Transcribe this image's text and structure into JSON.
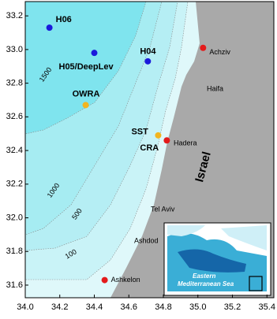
{
  "chart_data": {
    "type": "map",
    "xlim": [
      34.0,
      35.44
    ],
    "ylim": [
      31.525,
      33.285
    ],
    "xticks": [
      {
        "value": 34.0,
        "label": "34.0"
      },
      34.2,
      34.4,
      34.6,
      34.8,
      {
        "value": 35.0,
        "label": "35.0"
      },
      35.2,
      35.4
    ],
    "yticks": [
      31.6,
      31.8,
      {
        "value": 32.0,
        "label": "32.0"
      },
      32.2,
      32.4,
      32.6,
      32.8,
      {
        "value": 33.0,
        "label": "33.0"
      },
      33.2
    ],
    "stations": [
      {
        "name": "H06",
        "lon": 34.14,
        "lat": 33.13,
        "color": "#1a1adb"
      },
      {
        "name": "H05/DeepLev",
        "lon": 34.4,
        "lat": 32.98,
        "color": "#1a1adb"
      },
      {
        "name": "H04",
        "lon": 34.71,
        "lat": 32.93,
        "color": "#1a1adb"
      },
      {
        "name": "OWRA",
        "lon": 34.35,
        "lat": 32.67,
        "color": "#f2b51f"
      },
      {
        "name": "SST",
        "lon": 34.77,
        "lat": 32.49,
        "color": "#f2b51f"
      },
      {
        "name": "CRA",
        "lon": 34.82,
        "lat": 32.46,
        "color": "#e31b1b"
      }
    ],
    "places": [
      {
        "name": "Achziv",
        "lon": 35.03,
        "lat": 33.01,
        "color": "#e31b1b"
      },
      {
        "name": "Ashkelon",
        "lon": 34.46,
        "lat": 31.63,
        "color": "#e31b1b"
      },
      {
        "name": "Haifa"
      },
      {
        "name": "Hadera"
      },
      {
        "name": "Tel Aviv"
      },
      {
        "name": "Ashdod"
      }
    ],
    "contours": [
      1500,
      1000,
      500,
      100
    ],
    "country": "Israel",
    "inset_label": [
      "Eastern",
      "Mediterranean Sea"
    ]
  }
}
